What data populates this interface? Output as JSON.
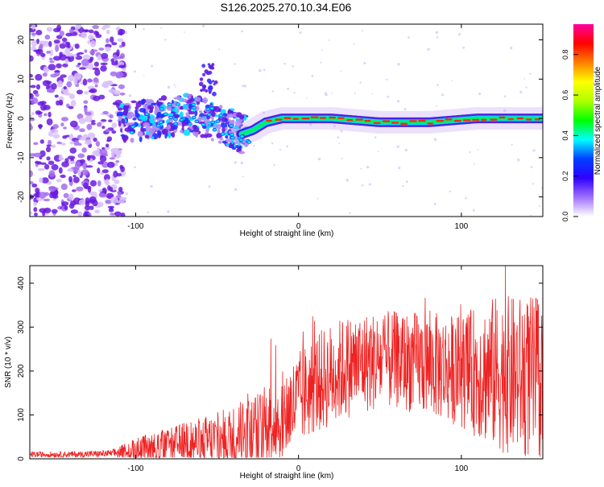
{
  "title": "S126.2025.270.10.34.E06",
  "colors": {
    "snr_line": "#ee2222",
    "axis": "#000000",
    "ridge_core": "#ff2a00",
    "ridge_halo": "#00ee66",
    "scatter": "#7a22e8"
  },
  "chart_data": [
    {
      "type": "heatmap",
      "name": "spectrogram",
      "title": "S126.2025.270.10.34.E06",
      "xlabel": "Height of straight line (km)",
      "ylabel": "Frequency (Hz)",
      "xlim": [
        -165,
        150
      ],
      "ylim": [
        -25,
        24
      ],
      "xticks": [
        -100,
        0,
        100
      ],
      "xtick_labels": [
        "-100",
        "0",
        "100"
      ],
      "yticks": [
        -20,
        -10,
        0,
        10,
        20
      ],
      "ytick_labels": [
        "-20",
        "-10",
        "0",
        "10",
        "20"
      ],
      "ridge_frequency_hz": {
        "x": [
          -110,
          -90,
          -70,
          -55,
          -45,
          -35,
          -28,
          -20,
          -10,
          0,
          20,
          50,
          80,
          110,
          130,
          150
        ],
        "y": [
          -1,
          0,
          1,
          0,
          -2,
          -4,
          -3,
          -1,
          0,
          0,
          0,
          -1,
          -1,
          0,
          0,
          0
        ]
      },
      "colorbar": {
        "label": "Normalized spectral amplitude",
        "min": 0,
        "max": 0.95,
        "ticks": [
          0.0,
          0.2,
          0.4,
          0.6,
          0.8
        ],
        "tick_labels": [
          "0.0",
          "0.2",
          "0.4",
          "0.6",
          "0.8"
        ],
        "stops": [
          "#ffffff",
          "#a070ff",
          "#3000ff",
          "#0040ff",
          "#00ffff",
          "#00ff00",
          "#b0ff00",
          "#ffff00",
          "#ff8000",
          "#ff0000",
          "#ff00a0"
        ]
      }
    },
    {
      "type": "line",
      "name": "snr",
      "xlabel": "Height of straight line (km)",
      "ylabel": "SNR (10 * v/v)",
      "xlim": [
        -165,
        150
      ],
      "ylim": [
        0,
        440
      ],
      "xticks": [
        -100,
        0,
        100
      ],
      "xtick_labels": [
        "-100",
        "0",
        "100"
      ],
      "yticks": [
        0,
        100,
        200,
        300,
        400
      ],
      "ytick_labels": [
        "0",
        "100",
        "200",
        "300",
        "400"
      ],
      "trend": {
        "x": [
          -165,
          -140,
          -115,
          -100,
          -80,
          -60,
          -40,
          -25,
          -10,
          0,
          10,
          20,
          30,
          40,
          60,
          80,
          100,
          120,
          140,
          150
        ],
        "y": [
          10,
          10,
          12,
          20,
          28,
          38,
          50,
          65,
          95,
          135,
          170,
          190,
          210,
          220,
          225,
          215,
          200,
          195,
          185,
          180
        ]
      },
      "noise_amplitude": {
        "x": [
          -165,
          -115,
          -100,
          -40,
          -10,
          20,
          60,
          100,
          120,
          150
        ],
        "y": [
          4,
          5,
          18,
          45,
          65,
          75,
          70,
          80,
          110,
          120
        ]
      },
      "peak": {
        "x": 127,
        "y": 440
      }
    }
  ]
}
